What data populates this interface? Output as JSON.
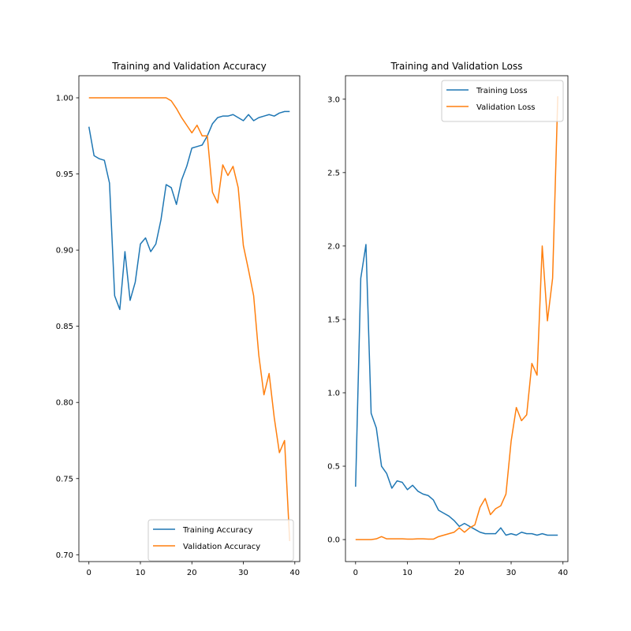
{
  "chart_data": [
    {
      "type": "line",
      "title": "Training and Validation Accuracy",
      "xlabel": "",
      "ylabel": "",
      "xlim": [
        -1.95,
        40.95
      ],
      "ylim": [
        0.6955,
        1.0145
      ],
      "xticks": [
        0,
        10,
        20,
        30,
        40
      ],
      "xtick_labels": [
        "0",
        "10",
        "20",
        "30",
        "40"
      ],
      "yticks": [
        0.7,
        0.75,
        0.8,
        0.85,
        0.9,
        0.95,
        1.0
      ],
      "ytick_labels": [
        "0.70",
        "0.75",
        "0.80",
        "0.85",
        "0.90",
        "0.95",
        "1.00"
      ],
      "legend_position": "bottom-right",
      "grid": false,
      "x": [
        0,
        1,
        2,
        3,
        4,
        5,
        6,
        7,
        8,
        9,
        10,
        11,
        12,
        13,
        14,
        15,
        16,
        17,
        18,
        19,
        20,
        21,
        22,
        23,
        24,
        25,
        26,
        27,
        28,
        29,
        30,
        31,
        32,
        33,
        34,
        35,
        36,
        37,
        38,
        39
      ],
      "series": [
        {
          "name": "Training Accuracy",
          "color": "#1f77b4",
          "values": [
            0.981,
            0.962,
            0.96,
            0.959,
            0.944,
            0.87,
            0.861,
            0.899,
            0.867,
            0.879,
            0.904,
            0.908,
            0.899,
            0.904,
            0.92,
            0.943,
            0.941,
            0.93,
            0.946,
            0.955,
            0.967,
            0.968,
            0.969,
            0.975,
            0.983,
            0.987,
            0.988,
            0.988,
            0.989,
            0.987,
            0.985,
            0.989,
            0.985,
            0.987,
            0.988,
            0.989,
            0.988,
            0.99,
            0.991,
            0.991
          ]
        },
        {
          "name": "Validation Accuracy",
          "color": "#ff7f0e",
          "values": [
            1.0,
            1.0,
            1.0,
            1.0,
            1.0,
            1.0,
            1.0,
            1.0,
            1.0,
            1.0,
            1.0,
            1.0,
            1.0,
            1.0,
            1.0,
            1.0,
            0.998,
            0.993,
            0.987,
            0.982,
            0.977,
            0.982,
            0.975,
            0.975,
            0.938,
            0.931,
            0.956,
            0.949,
            0.955,
            0.941,
            0.903,
            0.887,
            0.87,
            0.831,
            0.805,
            0.819,
            0.79,
            0.767,
            0.775,
            0.709
          ]
        }
      ]
    },
    {
      "type": "line",
      "title": "Training and Validation Loss",
      "xlabel": "",
      "ylabel": "",
      "xlim": [
        -1.95,
        40.95
      ],
      "ylim": [
        -0.15,
        3.16
      ],
      "xticks": [
        0,
        10,
        20,
        30,
        40
      ],
      "xtick_labels": [
        "0",
        "10",
        "20",
        "30",
        "40"
      ],
      "yticks": [
        0.0,
        0.5,
        1.0,
        1.5,
        2.0,
        2.5,
        3.0
      ],
      "ytick_labels": [
        "0.0",
        "0.5",
        "1.0",
        "1.5",
        "2.0",
        "2.5",
        "3.0"
      ],
      "legend_position": "top-right",
      "grid": false,
      "x": [
        0,
        1,
        2,
        3,
        4,
        5,
        6,
        7,
        8,
        9,
        10,
        11,
        12,
        13,
        14,
        15,
        16,
        17,
        18,
        19,
        20,
        21,
        22,
        23,
        24,
        25,
        26,
        27,
        28,
        29,
        30,
        31,
        32,
        33,
        34,
        35,
        36,
        37,
        38,
        39
      ],
      "series": [
        {
          "name": "Training Loss",
          "color": "#1f77b4",
          "values": [
            0.36,
            1.78,
            2.01,
            0.86,
            0.76,
            0.5,
            0.45,
            0.35,
            0.4,
            0.39,
            0.34,
            0.37,
            0.33,
            0.31,
            0.3,
            0.27,
            0.2,
            0.18,
            0.16,
            0.13,
            0.09,
            0.11,
            0.09,
            0.07,
            0.05,
            0.04,
            0.04,
            0.04,
            0.08,
            0.03,
            0.04,
            0.03,
            0.05,
            0.04,
            0.04,
            0.03,
            0.04,
            0.03,
            0.03,
            0.03
          ]
        },
        {
          "name": "Validation Loss",
          "color": "#ff7f0e",
          "values": [
            0.0,
            0.0,
            0.0,
            0.0,
            0.005,
            0.02,
            0.005,
            0.005,
            0.005,
            0.005,
            0.003,
            0.003,
            0.005,
            0.005,
            0.003,
            0.003,
            0.02,
            0.03,
            0.04,
            0.05,
            0.08,
            0.05,
            0.08,
            0.1,
            0.22,
            0.28,
            0.17,
            0.21,
            0.23,
            0.31,
            0.67,
            0.9,
            0.81,
            0.85,
            1.2,
            1.12,
            2.0,
            1.49,
            1.78,
            3.02
          ]
        }
      ]
    }
  ]
}
